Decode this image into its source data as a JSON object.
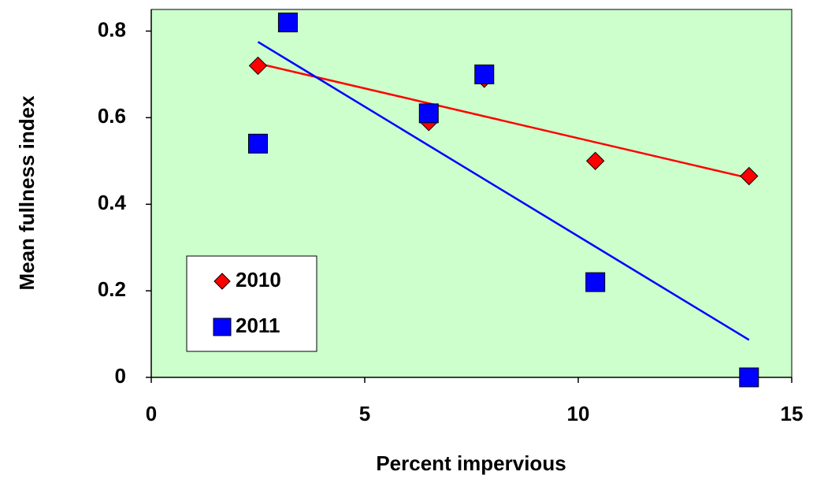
{
  "chart_data": {
    "type": "scatter",
    "xlabel": "Percent impervious",
    "ylabel": "Mean fullness index",
    "xlim": [
      0,
      15
    ],
    "ylim": [
      0,
      0.85
    ],
    "xticks": [
      0,
      5,
      10,
      15
    ],
    "yticks": [
      0,
      0.2,
      0.4,
      0.6,
      0.8
    ],
    "background": "#ccffcc",
    "legend": "lower left",
    "trendline": "linear",
    "series": [
      {
        "name": "2010",
        "color": "#ff0000",
        "marker": "diamond",
        "line_color": "#ff0000",
        "x": [
          2.5,
          6.5,
          7.8,
          10.4,
          14.0
        ],
        "values": [
          0.72,
          0.59,
          0.69,
          0.5,
          0.465
        ]
      },
      {
        "name": "2011",
        "color": "#0000ff",
        "marker": "square",
        "line_color": "#0000ff",
        "x": [
          2.5,
          3.2,
          6.5,
          7.8,
          10.4,
          14.0
        ],
        "values": [
          0.54,
          0.82,
          0.61,
          0.7,
          0.22,
          0.0
        ]
      }
    ]
  }
}
